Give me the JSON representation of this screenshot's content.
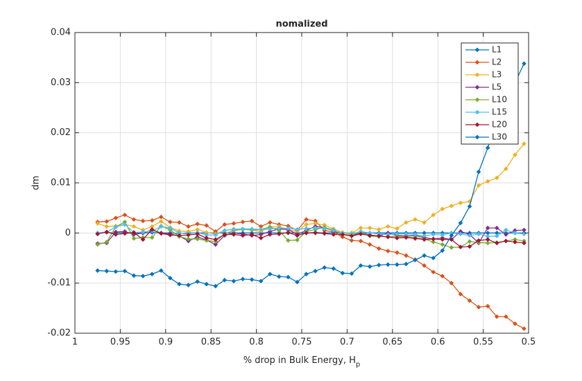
{
  "chart_data": {
    "type": "line",
    "title": "nomalized",
    "xlabel": "% drop in Bulk Energy, H",
    "xlabel_subscript": "p",
    "ylabel": "dm",
    "x": [
      0.975,
      0.965,
      0.955,
      0.945,
      0.935,
      0.925,
      0.915,
      0.905,
      0.895,
      0.885,
      0.875,
      0.865,
      0.855,
      0.845,
      0.835,
      0.825,
      0.815,
      0.805,
      0.795,
      0.785,
      0.775,
      0.765,
      0.755,
      0.745,
      0.735,
      0.725,
      0.715,
      0.705,
      0.695,
      0.685,
      0.675,
      0.665,
      0.655,
      0.645,
      0.635,
      0.625,
      0.615,
      0.605,
      0.595,
      0.585,
      0.575,
      0.565,
      0.555,
      0.545,
      0.535,
      0.525,
      0.515,
      0.505
    ],
    "series": [
      {
        "name": "L1",
        "color": "#0072BD",
        "values": [
          0,
          0.0001,
          0,
          0.0001,
          0,
          0,
          0.0001,
          0,
          0,
          -0.0001,
          0,
          0,
          0,
          0,
          0,
          0,
          0,
          0,
          0,
          0,
          0,
          0,
          0,
          0,
          0.0001,
          0,
          0,
          0,
          0,
          0,
          0,
          0,
          0,
          0,
          0,
          0,
          0,
          0,
          0,
          0,
          0,
          0,
          0,
          0,
          0,
          0,
          0,
          0
        ]
      },
      {
        "name": "L2",
        "color": "#D95319",
        "values": [
          0.0022,
          0.0023,
          0.003,
          0.0036,
          0.0027,
          0.0024,
          0.0025,
          0.0032,
          0.0022,
          0.0021,
          0.0013,
          0.0018,
          0.0015,
          0.0003,
          0.0017,
          0.0019,
          0.0022,
          0.0024,
          0.0013,
          0.0021,
          0.0017,
          0.0014,
          0.0005,
          0.0027,
          0.0024,
          0.0005,
          0.0002,
          -0.0008,
          -0.0015,
          -0.0016,
          -0.0023,
          -0.0031,
          -0.0036,
          -0.0039,
          -0.0045,
          -0.0053,
          -0.0065,
          -0.0078,
          -0.0086,
          -0.01,
          -0.0122,
          -0.0135,
          -0.0148,
          -0.0146,
          -0.0167,
          -0.0167,
          -0.0181,
          -0.0191
        ]
      },
      {
        "name": "L3",
        "color": "#EDB120",
        "values": [
          0.0019,
          0.0013,
          0.0014,
          0.0017,
          0.0013,
          0.0006,
          0.0013,
          0.0023,
          0.0011,
          0.0004,
          0.0003,
          0.0007,
          0.0001,
          -0.0002,
          0.0005,
          0.0008,
          0.0008,
          0.0006,
          0.0003,
          0.0012,
          0.0013,
          0.0006,
          0.0003,
          0.0017,
          0.0019,
          0.0016,
          0.0008,
          0.0001,
          0,
          0.001,
          0.001,
          0.0007,
          0.0013,
          0.0009,
          0.0021,
          0.0027,
          0.0021,
          0.0036,
          0.0048,
          0.0054,
          0.006,
          0.0063,
          0.0095,
          0.0103,
          0.011,
          0.0128,
          0.0156,
          0.0178
        ]
      },
      {
        "name": "L5",
        "color": "#7E2F8E",
        "values": [
          -0.0021,
          -0.002,
          0.0002,
          0.0003,
          -0.0003,
          0,
          0.0006,
          0,
          -0.0002,
          -0.0006,
          -0.0016,
          -0.0008,
          -0.0014,
          -0.0023,
          -0.0005,
          0,
          -0.0002,
          -0.0005,
          -0.0003,
          0.0003,
          0.0008,
          0.0007,
          -0.0003,
          0.0005,
          0.0013,
          0.0011,
          0.0004,
          -0.0003,
          -0.0005,
          0,
          -0.0004,
          -0.0006,
          0,
          -0.0005,
          -0.0006,
          -0.0005,
          -0.0009,
          -0.0012,
          -0.001,
          -0.0013,
          0.0003,
          -0.0003,
          -0.002,
          0.001,
          0.001,
          -0.0003,
          0.0005,
          0.0006
        ]
      },
      {
        "name": "L10",
        "color": "#77AC30",
        "values": [
          -0.0023,
          -0.0018,
          0.0012,
          0.0022,
          -0.0011,
          -0.0009,
          -0.0009,
          0.0014,
          0.0006,
          -0.0007,
          -0.0012,
          -0.0012,
          -0.0015,
          -0.0017,
          -0.0002,
          0.0005,
          0.0007,
          0.0006,
          0.0007,
          0.0012,
          0.0005,
          -0.0015,
          -0.0014,
          0.0003,
          0.0007,
          0.0011,
          0.0006,
          -0.0003,
          -0.0004,
          0.0002,
          -0.0006,
          -0.0007,
          -0.0007,
          -0.0007,
          -0.0008,
          -0.0009,
          -0.0012,
          -0.0018,
          -0.0023,
          -0.0029,
          -0.0028,
          -0.0017,
          -0.0019,
          -0.002,
          -0.0019,
          -0.0016,
          -0.0013,
          -0.0016
        ]
      },
      {
        "name": "L15",
        "color": "#4DBEEE",
        "values": [
          0,
          0.0002,
          0.0012,
          0.0017,
          0.0001,
          0.0002,
          0.0004,
          0.0013,
          0.001,
          0,
          -0.0002,
          0.0001,
          -0.0004,
          -0.0004,
          0.0005,
          0.0007,
          0.0008,
          0.0008,
          0.0007,
          0.0008,
          0.001,
          0.0009,
          0.0007,
          0.0009,
          0.001,
          0.0009,
          0.0005,
          0,
          -0.0002,
          0.0003,
          0,
          -0.0002,
          -0.0003,
          -0.0002,
          -0.0002,
          -0.0003,
          -0.0006,
          -0.0003,
          -0.0004,
          0,
          -0.0002,
          -0.0005,
          -0.0002,
          -0.0007,
          -0.0006,
          0.0006,
          0,
          -0.0002
        ]
      },
      {
        "name": "L20",
        "color": "#A2142F",
        "values": [
          -0.0002,
          0.0002,
          -0.0003,
          -0.0001,
          0.0001,
          -0.0013,
          0.0007,
          -0.0001,
          -0.0004,
          -0.0005,
          -0.0004,
          -0.0002,
          -0.001,
          -0.0013,
          -0.0003,
          -0.0003,
          -0.0005,
          -0.0003,
          -0.001,
          -0.0003,
          -0.0002,
          0.0001,
          -0.0005,
          0,
          0,
          -0.0001,
          -0.0003,
          -0.0003,
          -0.0006,
          -0.0002,
          -0.0005,
          -0.0006,
          -0.0008,
          -0.001,
          -0.0009,
          -0.0011,
          -0.0013,
          -0.0012,
          -0.0013,
          -0.0013,
          -0.0028,
          -0.0027,
          -0.0015,
          -0.0013,
          -0.002,
          -0.0016,
          -0.0018,
          -0.002
        ]
      },
      {
        "name": "L30",
        "color": "#0072BD",
        "values": [
          -0.0075,
          -0.0076,
          -0.0077,
          -0.0076,
          -0.0085,
          -0.0086,
          -0.0082,
          -0.0075,
          -0.009,
          -0.0102,
          -0.0104,
          -0.0097,
          -0.0102,
          -0.0106,
          -0.0094,
          -0.0096,
          -0.0092,
          -0.0093,
          -0.0096,
          -0.0082,
          -0.0087,
          -0.0088,
          -0.0098,
          -0.0082,
          -0.0076,
          -0.0069,
          -0.0071,
          -0.008,
          -0.0081,
          -0.0065,
          -0.0067,
          -0.0064,
          -0.0063,
          -0.0063,
          -0.0062,
          -0.0054,
          -0.0045,
          -0.005,
          -0.0035,
          -0.0005,
          0.002,
          0.0053,
          0.0122,
          0.017,
          0.022,
          0.026,
          0.03,
          0.0338
        ]
      }
    ],
    "xlim": [
      1,
      0.5
    ],
    "xticks": [
      1,
      0.95,
      0.9,
      0.85,
      0.8,
      0.75,
      0.7,
      0.65,
      0.6,
      0.55,
      0.5
    ],
    "ylim": [
      -0.02,
      0.04
    ],
    "yticks": [
      -0.02,
      -0.01,
      0,
      0.01,
      0.02,
      0.03,
      0.04
    ],
    "grid": true,
    "legend": "northeast"
  }
}
